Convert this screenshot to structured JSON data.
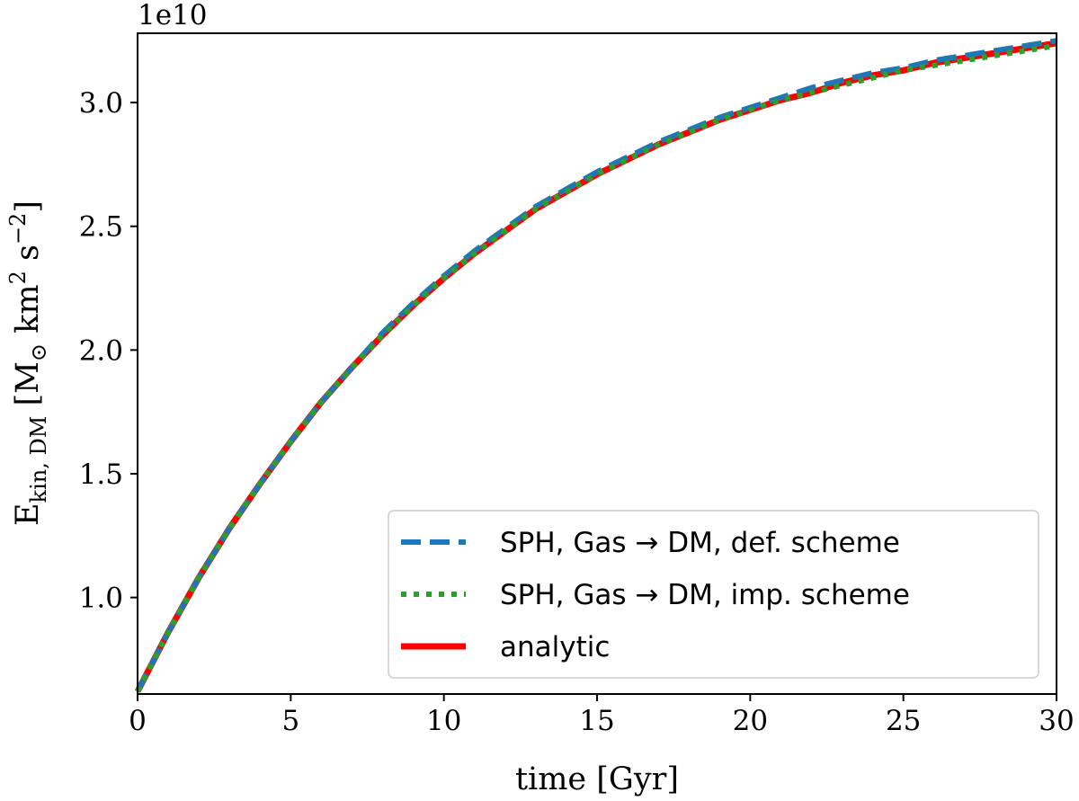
{
  "chart_data": {
    "type": "line",
    "title": "",
    "xlabel": "time [Gyr]",
    "ylabel": "E_kin,DM [M⊙ km² s⁻²]",
    "ylabel_parts": {
      "symbol": "E",
      "subscript": "kin, DM",
      "units": " [M",
      "odot": "⊙",
      "km": " km",
      "sq": "2",
      "s": " s",
      "neg2": "−2",
      "close": "]"
    },
    "y_offset_label": "1e10",
    "xlim": [
      0,
      30
    ],
    "ylim": [
      0.61,
      3.28
    ],
    "xticks": [
      0,
      5,
      10,
      15,
      20,
      25,
      30
    ],
    "xtick_labels": [
      "0",
      "5",
      "10",
      "15",
      "20",
      "25",
      "30"
    ],
    "yticks": [
      1.0,
      1.5,
      2.0,
      2.5,
      3.0
    ],
    "ytick_labels": [
      "1.0",
      "1.5",
      "2.0",
      "2.5",
      "3.0"
    ],
    "grid": false,
    "legend_position": "lower-right",
    "x": [
      0,
      1,
      2,
      3,
      4,
      5,
      6,
      7,
      8,
      9,
      10,
      11,
      12,
      13,
      14,
      15,
      16,
      17,
      18,
      19,
      20,
      21,
      22,
      23,
      24,
      25,
      26,
      27,
      28,
      29,
      30
    ],
    "series": [
      {
        "name": "SPH, Gas → DM, def. scheme",
        "color": "#1f77b4",
        "style": "dashed",
        "values": [
          0.62,
          0.86,
          1.08,
          1.28,
          1.46,
          1.63,
          1.79,
          1.93,
          2.07,
          2.19,
          2.3,
          2.4,
          2.49,
          2.58,
          2.65,
          2.72,
          2.78,
          2.84,
          2.89,
          2.94,
          2.98,
          3.02,
          3.06,
          3.09,
          3.12,
          3.14,
          3.17,
          3.19,
          3.21,
          3.23,
          3.25
        ]
      },
      {
        "name": "SPH, Gas → DM, imp. scheme",
        "color": "#2ca02c",
        "style": "dotted",
        "values": [
          0.62,
          0.86,
          1.08,
          1.28,
          1.46,
          1.63,
          1.79,
          1.93,
          2.06,
          2.18,
          2.29,
          2.39,
          2.48,
          2.57,
          2.64,
          2.71,
          2.77,
          2.83,
          2.88,
          2.93,
          2.97,
          3.01,
          3.04,
          3.07,
          3.1,
          3.13,
          3.15,
          3.17,
          3.19,
          3.21,
          3.23
        ]
      },
      {
        "name": "analytic",
        "color": "#ff0000",
        "style": "solid",
        "values": [
          0.62,
          0.86,
          1.08,
          1.28,
          1.46,
          1.63,
          1.79,
          1.93,
          2.06,
          2.18,
          2.29,
          2.39,
          2.48,
          2.57,
          2.64,
          2.71,
          2.77,
          2.83,
          2.88,
          2.93,
          2.97,
          3.01,
          3.04,
          3.08,
          3.11,
          3.13,
          3.16,
          3.18,
          3.2,
          3.22,
          3.24
        ]
      }
    ],
    "legend": {
      "entries": [
        "SPH, Gas → DM, def. scheme",
        "SPH, Gas → DM, imp. scheme",
        "analytic"
      ]
    }
  }
}
